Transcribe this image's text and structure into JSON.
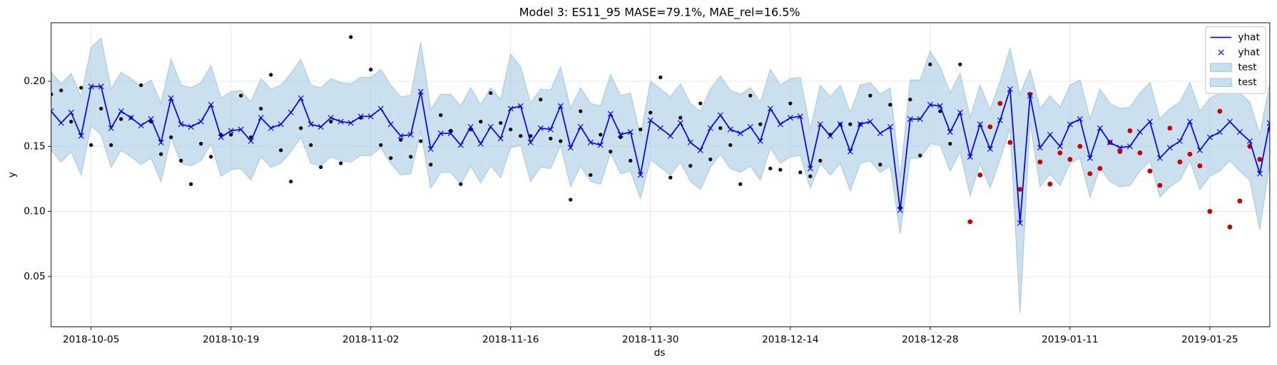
{
  "chart_data": {
    "type": "line",
    "title": "Model 3: ES11_95 MASE=79.1%, MAE_rel=16.5%",
    "xlabel": "ds",
    "ylabel": "y",
    "x": [
      "2018-10-01",
      "2018-10-02",
      "2018-10-03",
      "2018-10-04",
      "2018-10-05",
      "2018-10-06",
      "2018-10-07",
      "2018-10-08",
      "2018-10-09",
      "2018-10-10",
      "2018-10-11",
      "2018-10-12",
      "2018-10-13",
      "2018-10-14",
      "2018-10-15",
      "2018-10-16",
      "2018-10-17",
      "2018-10-18",
      "2018-10-19",
      "2018-10-20",
      "2018-10-21",
      "2018-10-22",
      "2018-10-23",
      "2018-10-24",
      "2018-10-25",
      "2018-10-26",
      "2018-10-27",
      "2018-10-28",
      "2018-10-29",
      "2018-10-30",
      "2018-10-31",
      "2018-11-01",
      "2018-11-02",
      "2018-11-03",
      "2018-11-04",
      "2018-11-05",
      "2018-11-06",
      "2018-11-07",
      "2018-11-08",
      "2018-11-09",
      "2018-11-10",
      "2018-11-11",
      "2018-11-12",
      "2018-11-13",
      "2018-11-14",
      "2018-11-15",
      "2018-11-16",
      "2018-11-17",
      "2018-11-18",
      "2018-11-19",
      "2018-11-20",
      "2018-11-21",
      "2018-11-22",
      "2018-11-23",
      "2018-11-24",
      "2018-11-25",
      "2018-11-26",
      "2018-11-27",
      "2018-11-28",
      "2018-11-29",
      "2018-11-30",
      "2018-12-01",
      "2018-12-02",
      "2018-12-03",
      "2018-12-04",
      "2018-12-05",
      "2018-12-06",
      "2018-12-07",
      "2018-12-08",
      "2018-12-09",
      "2018-12-10",
      "2018-12-11",
      "2018-12-12",
      "2018-12-13",
      "2018-12-14",
      "2018-12-15",
      "2018-12-16",
      "2018-12-17",
      "2018-12-18",
      "2018-12-19",
      "2018-12-20",
      "2018-12-21",
      "2018-12-22",
      "2018-12-23",
      "2018-12-24",
      "2018-12-25",
      "2018-12-26",
      "2018-12-27",
      "2018-12-28",
      "2018-12-29",
      "2018-12-30",
      "2018-12-31",
      "2019-01-01",
      "2019-01-02",
      "2019-01-03",
      "2019-01-04",
      "2019-01-05",
      "2019-01-06",
      "2019-01-07",
      "2019-01-08",
      "2019-01-09",
      "2019-01-10",
      "2019-01-11",
      "2019-01-12",
      "2019-01-13",
      "2019-01-14",
      "2019-01-15",
      "2019-01-16",
      "2019-01-17",
      "2019-01-18",
      "2019-01-19",
      "2019-01-20",
      "2019-01-21",
      "2019-01-22",
      "2019-01-23",
      "2019-01-24",
      "2019-01-25",
      "2019-01-26",
      "2019-01-27",
      "2019-01-28",
      "2019-01-29",
      "2019-01-30",
      "2019-01-31"
    ],
    "forecast": {
      "color": "#0000ff",
      "values": [
        0.177,
        0.168,
        0.176,
        0.158,
        0.196,
        0.196,
        0.164,
        0.177,
        0.172,
        0.166,
        0.171,
        0.153,
        0.187,
        0.167,
        0.165,
        0.169,
        0.182,
        0.157,
        0.162,
        0.163,
        0.154,
        0.172,
        0.164,
        0.167,
        0.176,
        0.187,
        0.167,
        0.165,
        0.172,
        0.169,
        0.168,
        0.173,
        0.173,
        0.179,
        0.167,
        0.158,
        0.159,
        0.192,
        0.148,
        0.16,
        0.16,
        0.151,
        0.165,
        0.152,
        0.165,
        0.156,
        0.179,
        0.181,
        0.153,
        0.164,
        0.163,
        0.181,
        0.149,
        0.165,
        0.153,
        0.151,
        0.175,
        0.159,
        0.161,
        0.128,
        0.17,
        0.164,
        0.158,
        0.168,
        0.153,
        0.147,
        0.164,
        0.174,
        0.163,
        0.16,
        0.165,
        0.154,
        0.179,
        0.167,
        0.172,
        0.173,
        0.133,
        0.167,
        0.158,
        0.167,
        0.146,
        0.167,
        0.169,
        0.16,
        0.165,
        0.101,
        0.171,
        0.171,
        0.182,
        0.181,
        0.161,
        0.176,
        0.142,
        0.167,
        0.148,
        0.17,
        0.194,
        0.091,
        0.189,
        0.149,
        0.159,
        0.15,
        0.167,
        0.171,
        0.141,
        0.164,
        0.153,
        0.149,
        0.15,
        0.161,
        0.169,
        0.141,
        0.149,
        0.154,
        0.169,
        0.147,
        0.157,
        0.161,
        0.169,
        0.161,
        0.154,
        0.129,
        0.168
      ]
    },
    "band": {
      "color": "#a6cbe3",
      "upper": [
        0.207,
        0.198,
        0.206,
        0.188,
        0.226,
        0.233,
        0.194,
        0.207,
        0.202,
        0.196,
        0.201,
        0.183,
        0.217,
        0.197,
        0.195,
        0.199,
        0.212,
        0.187,
        0.192,
        0.193,
        0.184,
        0.202,
        0.194,
        0.197,
        0.206,
        0.217,
        0.197,
        0.195,
        0.202,
        0.199,
        0.198,
        0.203,
        0.203,
        0.209,
        0.197,
        0.188,
        0.189,
        0.23,
        0.178,
        0.19,
        0.19,
        0.181,
        0.195,
        0.182,
        0.195,
        0.186,
        0.221,
        0.211,
        0.183,
        0.194,
        0.193,
        0.211,
        0.179,
        0.195,
        0.183,
        0.181,
        0.205,
        0.189,
        0.191,
        0.158,
        0.2,
        0.194,
        0.188,
        0.198,
        0.183,
        0.177,
        0.194,
        0.204,
        0.193,
        0.19,
        0.195,
        0.184,
        0.209,
        0.197,
        0.202,
        0.203,
        0.163,
        0.197,
        0.188,
        0.197,
        0.176,
        0.197,
        0.199,
        0.19,
        0.195,
        0.125,
        0.201,
        0.201,
        0.223,
        0.211,
        0.191,
        0.206,
        0.172,
        0.197,
        0.178,
        0.2,
        0.225,
        0.19,
        0.209,
        0.179,
        0.189,
        0.18,
        0.197,
        0.201,
        0.171,
        0.194,
        0.183,
        0.179,
        0.18,
        0.191,
        0.199,
        0.171,
        0.179,
        0.184,
        0.199,
        0.177,
        0.187,
        0.191,
        0.199,
        0.191,
        0.184,
        0.159,
        0.198
      ],
      "lower": [
        0.147,
        0.138,
        0.146,
        0.128,
        0.166,
        0.159,
        0.134,
        0.147,
        0.142,
        0.136,
        0.141,
        0.123,
        0.157,
        0.137,
        0.135,
        0.139,
        0.152,
        0.127,
        0.132,
        0.133,
        0.124,
        0.142,
        0.134,
        0.137,
        0.146,
        0.157,
        0.137,
        0.135,
        0.142,
        0.139,
        0.138,
        0.143,
        0.143,
        0.149,
        0.137,
        0.128,
        0.129,
        0.162,
        0.118,
        0.13,
        0.13,
        0.121,
        0.135,
        0.122,
        0.135,
        0.126,
        0.149,
        0.151,
        0.123,
        0.134,
        0.133,
        0.151,
        0.119,
        0.135,
        0.123,
        0.121,
        0.145,
        0.129,
        0.131,
        0.11,
        0.14,
        0.134,
        0.128,
        0.138,
        0.123,
        0.117,
        0.134,
        0.144,
        0.133,
        0.13,
        0.135,
        0.124,
        0.149,
        0.137,
        0.142,
        0.143,
        0.118,
        0.137,
        0.128,
        0.137,
        0.116,
        0.137,
        0.139,
        0.13,
        0.135,
        0.083,
        0.141,
        0.141,
        0.152,
        0.151,
        0.131,
        0.146,
        0.112,
        0.137,
        0.118,
        0.14,
        0.164,
        0.022,
        0.169,
        0.119,
        0.129,
        0.12,
        0.137,
        0.141,
        0.111,
        0.134,
        0.123,
        0.119,
        0.12,
        0.131,
        0.139,
        0.111,
        0.119,
        0.124,
        0.139,
        0.117,
        0.127,
        0.131,
        0.139,
        0.131,
        0.124,
        0.086,
        0.138
      ]
    },
    "actual": {
      "color": "#000000",
      "values": [
        0.19,
        0.193,
        0.169,
        0.195,
        0.151,
        0.179,
        0.151,
        0.171,
        0.172,
        0.197,
        0.169,
        0.144,
        0.157,
        0.139,
        0.121,
        0.152,
        0.142,
        0.159,
        0.159,
        0.189,
        0.157,
        0.179,
        0.205,
        0.147,
        0.123,
        0.164,
        0.151,
        0.134,
        0.169,
        0.137,
        0.234,
        0.172,
        0.209,
        0.151,
        0.141,
        0.155,
        0.142,
        0.154,
        0.136,
        0.174,
        0.162,
        0.121,
        0.163,
        0.169,
        0.191,
        0.168,
        0.163,
        0.158,
        0.158,
        0.186,
        0.156,
        0.154,
        0.109,
        0.177,
        0.128,
        0.159,
        0.146,
        0.157,
        0.139,
        0.163,
        0.176,
        0.203,
        0.126,
        0.172,
        0.135,
        0.183,
        0.14,
        0.164,
        0.151,
        0.121,
        0.189,
        0.167,
        0.133,
        0.132,
        0.183,
        0.13,
        0.127,
        0.139,
        0.159,
        0.167,
        0.167,
        0.167,
        0.189,
        0.136,
        0.182,
        0.103,
        0.186,
        0.143,
        0.213,
        0.177,
        0.152,
        0.213,
        null,
        null,
        null,
        null,
        null,
        null,
        null,
        null,
        null,
        null,
        null,
        null,
        null,
        null,
        null,
        null,
        null,
        null,
        null,
        null,
        null,
        null,
        null,
        null,
        null,
        null,
        null,
        null,
        null,
        null,
        null
      ]
    },
    "test": {
      "color": "#cc0000",
      "values": [
        null,
        null,
        null,
        null,
        null,
        null,
        null,
        null,
        null,
        null,
        null,
        null,
        null,
        null,
        null,
        null,
        null,
        null,
        null,
        null,
        null,
        null,
        null,
        null,
        null,
        null,
        null,
        null,
        null,
        null,
        null,
        null,
        null,
        null,
        null,
        null,
        null,
        null,
        null,
        null,
        null,
        null,
        null,
        null,
        null,
        null,
        null,
        null,
        null,
        null,
        null,
        null,
        null,
        null,
        null,
        null,
        null,
        null,
        null,
        null,
        null,
        null,
        null,
        null,
        null,
        null,
        null,
        null,
        null,
        null,
        null,
        null,
        null,
        null,
        null,
        null,
        null,
        null,
        null,
        null,
        null,
        null,
        null,
        null,
        null,
        null,
        null,
        null,
        null,
        null,
        null,
        null,
        0.092,
        0.128,
        0.165,
        0.183,
        0.153,
        0.117,
        0.19,
        0.138,
        0.121,
        0.145,
        0.14,
        0.15,
        0.129,
        0.133,
        0.153,
        0.146,
        0.162,
        0.145,
        0.131,
        0.12,
        0.164,
        0.138,
        0.144,
        0.135,
        0.1,
        0.177,
        0.088,
        0.108,
        0.15,
        0.14,
        0.163
      ]
    },
    "xlim": [
      "2018-10-01",
      "2019-01-31"
    ],
    "xticks": [
      "2018-10-05",
      "2018-10-19",
      "2018-11-02",
      "2018-11-16",
      "2018-11-30",
      "2018-12-14",
      "2018-12-28",
      "2019-01-11",
      "2019-01-25"
    ],
    "ylim": [
      0.0113,
      0.245
    ],
    "yticks": [
      0.05,
      {
        "value": 0.1,
        "label": "0.10"
      },
      0.15,
      {
        "value": 0.2,
        "label": "0.20"
      }
    ],
    "grid": true,
    "legend": {
      "loc": "upper right",
      "entries": [
        {
          "label": "yhat",
          "kind": "line"
        },
        {
          "label": "yhat",
          "kind": "marker"
        },
        {
          "label": "test",
          "kind": "band"
        },
        {
          "label": "test",
          "kind": "band"
        }
      ]
    }
  }
}
